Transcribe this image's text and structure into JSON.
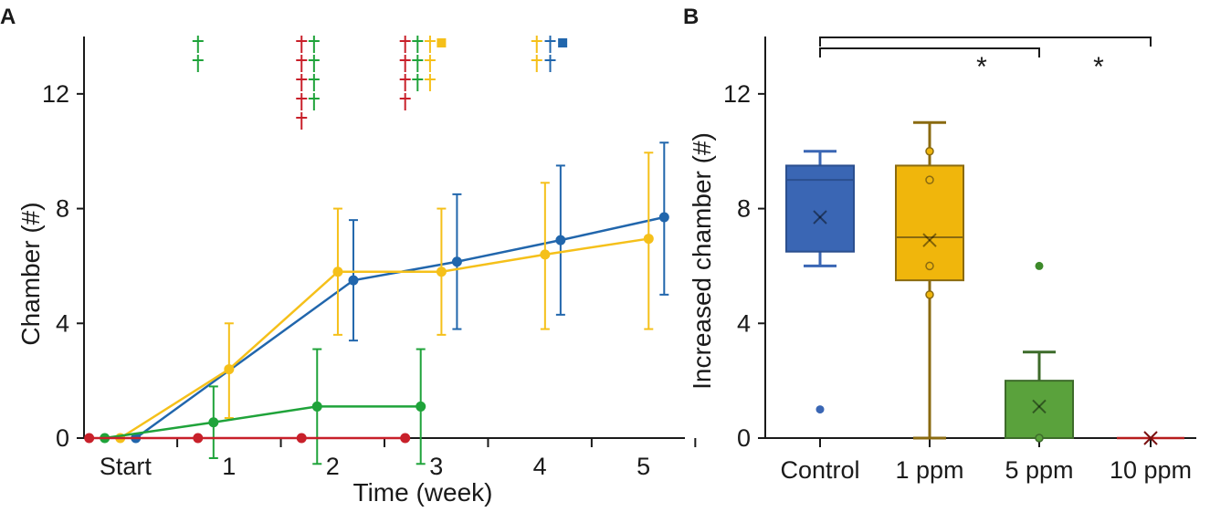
{
  "colors": {
    "control": "#2166ac",
    "ppm1": "#f5c01a",
    "ppm5": "#1fa33a",
    "ppm10": "#c8202a",
    "box_control": "#3a66b4",
    "box_1ppm": "#f0b60c",
    "box_5ppm": "#5aa23c",
    "box_10ppm": "#b71c1c",
    "cross_green": "#6fa82e"
  },
  "chart_data": [
    {
      "panel": "A",
      "type": "line",
      "xlabel": "Time (week)",
      "ylabel": "Chamber (#)",
      "ylim": [
        0,
        14
      ],
      "yticks": [
        0,
        4,
        8,
        12
      ],
      "xlim": [
        -0.4,
        5.4
      ],
      "xticks": [
        {
          "x": 0,
          "label": "Start"
        },
        {
          "x": 1,
          "label": "1"
        },
        {
          "x": 2,
          "label": "2"
        },
        {
          "x": 3,
          "label": "3"
        },
        {
          "x": 4,
          "label": "4"
        },
        {
          "x": 5,
          "label": "5"
        }
      ],
      "series": [
        {
          "name": "Control",
          "color_key": "control",
          "points": [
            {
              "x": 0.1,
              "y": 0,
              "lo": 0,
              "hi": 0
            },
            {
              "x": 2.2,
              "y": 5.5,
              "lo": 3.4,
              "hi": 7.6
            },
            {
              "x": 3.2,
              "y": 6.15,
              "lo": 3.8,
              "hi": 8.5
            },
            {
              "x": 4.2,
              "y": 6.9,
              "lo": 4.3,
              "hi": 9.5
            },
            {
              "x": 5.2,
              "y": 7.7,
              "lo": 5.0,
              "hi": 10.3
            }
          ]
        },
        {
          "name": "1 ppm",
          "color_key": "ppm1",
          "points": [
            {
              "x": -0.05,
              "y": 0,
              "lo": 0,
              "hi": 0
            },
            {
              "x": 1.0,
              "y": 2.4,
              "lo": 0.7,
              "hi": 4.0
            },
            {
              "x": 2.05,
              "y": 5.8,
              "lo": 3.6,
              "hi": 8.0
            },
            {
              "x": 3.05,
              "y": 5.8,
              "lo": 3.6,
              "hi": 8.0
            },
            {
              "x": 4.05,
              "y": 6.4,
              "lo": 3.8,
              "hi": 8.9
            },
            {
              "x": 5.05,
              "y": 6.95,
              "lo": 3.8,
              "hi": 9.95
            }
          ]
        },
        {
          "name": "5 ppm",
          "color_key": "ppm5",
          "points": [
            {
              "x": -0.2,
              "y": 0,
              "lo": 0,
              "hi": 0
            },
            {
              "x": 0.85,
              "y": 0.55,
              "lo": -0.7,
              "hi": 1.8
            },
            {
              "x": 1.85,
              "y": 1.1,
              "lo": -0.9,
              "hi": 3.1
            },
            {
              "x": 2.85,
              "y": 1.1,
              "lo": -0.9,
              "hi": 3.1
            }
          ]
        },
        {
          "name": "10 ppm",
          "color_key": "ppm10",
          "points": [
            {
              "x": -0.35,
              "y": 0,
              "lo": 0,
              "hi": 0
            },
            {
              "x": 0.7,
              "y": 0,
              "lo": 0,
              "hi": 0
            },
            {
              "x": 1.7,
              "y": 0,
              "lo": 0,
              "hi": 0
            },
            {
              "x": 2.7,
              "y": 0,
              "lo": 0,
              "hi": 0
            }
          ]
        }
      ],
      "death_markers": [
        {
          "x": 0.7,
          "color_key": "ppm5",
          "count": 2,
          "type": "cross"
        },
        {
          "x": 1.7,
          "color_key": "ppm10",
          "count": 5,
          "type": "cross"
        },
        {
          "x": 1.82,
          "color_key": "ppm5",
          "count": 4,
          "type": "cross"
        },
        {
          "x": 2.7,
          "color_key": "ppm10",
          "count": 4,
          "type": "cross"
        },
        {
          "x": 2.82,
          "color_key": "ppm5",
          "count": 3,
          "type": "cross"
        },
        {
          "x": 2.94,
          "color_key": "ppm1",
          "count": 3,
          "type": "cross"
        },
        {
          "x": 3.05,
          "color_key": "ppm1",
          "count": 1,
          "type": "square"
        },
        {
          "x": 3.97,
          "color_key": "ppm1",
          "count": 2,
          "type": "cross"
        },
        {
          "x": 4.1,
          "color_key": "control",
          "count": 2,
          "type": "cross"
        },
        {
          "x": 4.22,
          "color_key": "control",
          "count": 1,
          "type": "square"
        }
      ]
    },
    {
      "panel": "B",
      "type": "box",
      "ylabel": "Increased chamber (#)",
      "ylim": [
        0,
        14
      ],
      "yticks": [
        0,
        4,
        8,
        12
      ],
      "categories": [
        "Control",
        "1 ppm",
        "5 ppm",
        "10 ppm"
      ],
      "boxes": [
        {
          "category": "Control",
          "color_key": "box_control",
          "whisker_low": 6,
          "q1": 6.5,
          "median": 9,
          "q3": 9.5,
          "whisker_high": 10,
          "mean": 7.7,
          "points": [],
          "outliers": [
            1
          ]
        },
        {
          "category": "1 ppm",
          "color_key": "box_1ppm",
          "whisker_low": 0,
          "q1": 5.5,
          "median": 7,
          "q3": 9.5,
          "whisker_high": 11,
          "mean": 6.9,
          "points": [
            10,
            9,
            6,
            5
          ],
          "outliers": []
        },
        {
          "category": "5 ppm",
          "color_key": "box_5ppm",
          "whisker_low": 0,
          "q1": 0,
          "median": 0,
          "q3": 2,
          "whisker_high": 3,
          "mean": 1.1,
          "points": [
            0
          ],
          "outliers": [
            6
          ]
        },
        {
          "category": "10 ppm",
          "color_key": "box_10ppm",
          "whisker_low": 0,
          "q1": 0,
          "median": 0,
          "q3": 0,
          "whisker_high": 0,
          "mean": 0,
          "points": [],
          "outliers": []
        }
      ],
      "significance": [
        {
          "from": "Control",
          "to": "5 ppm",
          "label": "*"
        },
        {
          "from": "Control",
          "to": "10 ppm",
          "label": "*"
        }
      ]
    }
  ]
}
